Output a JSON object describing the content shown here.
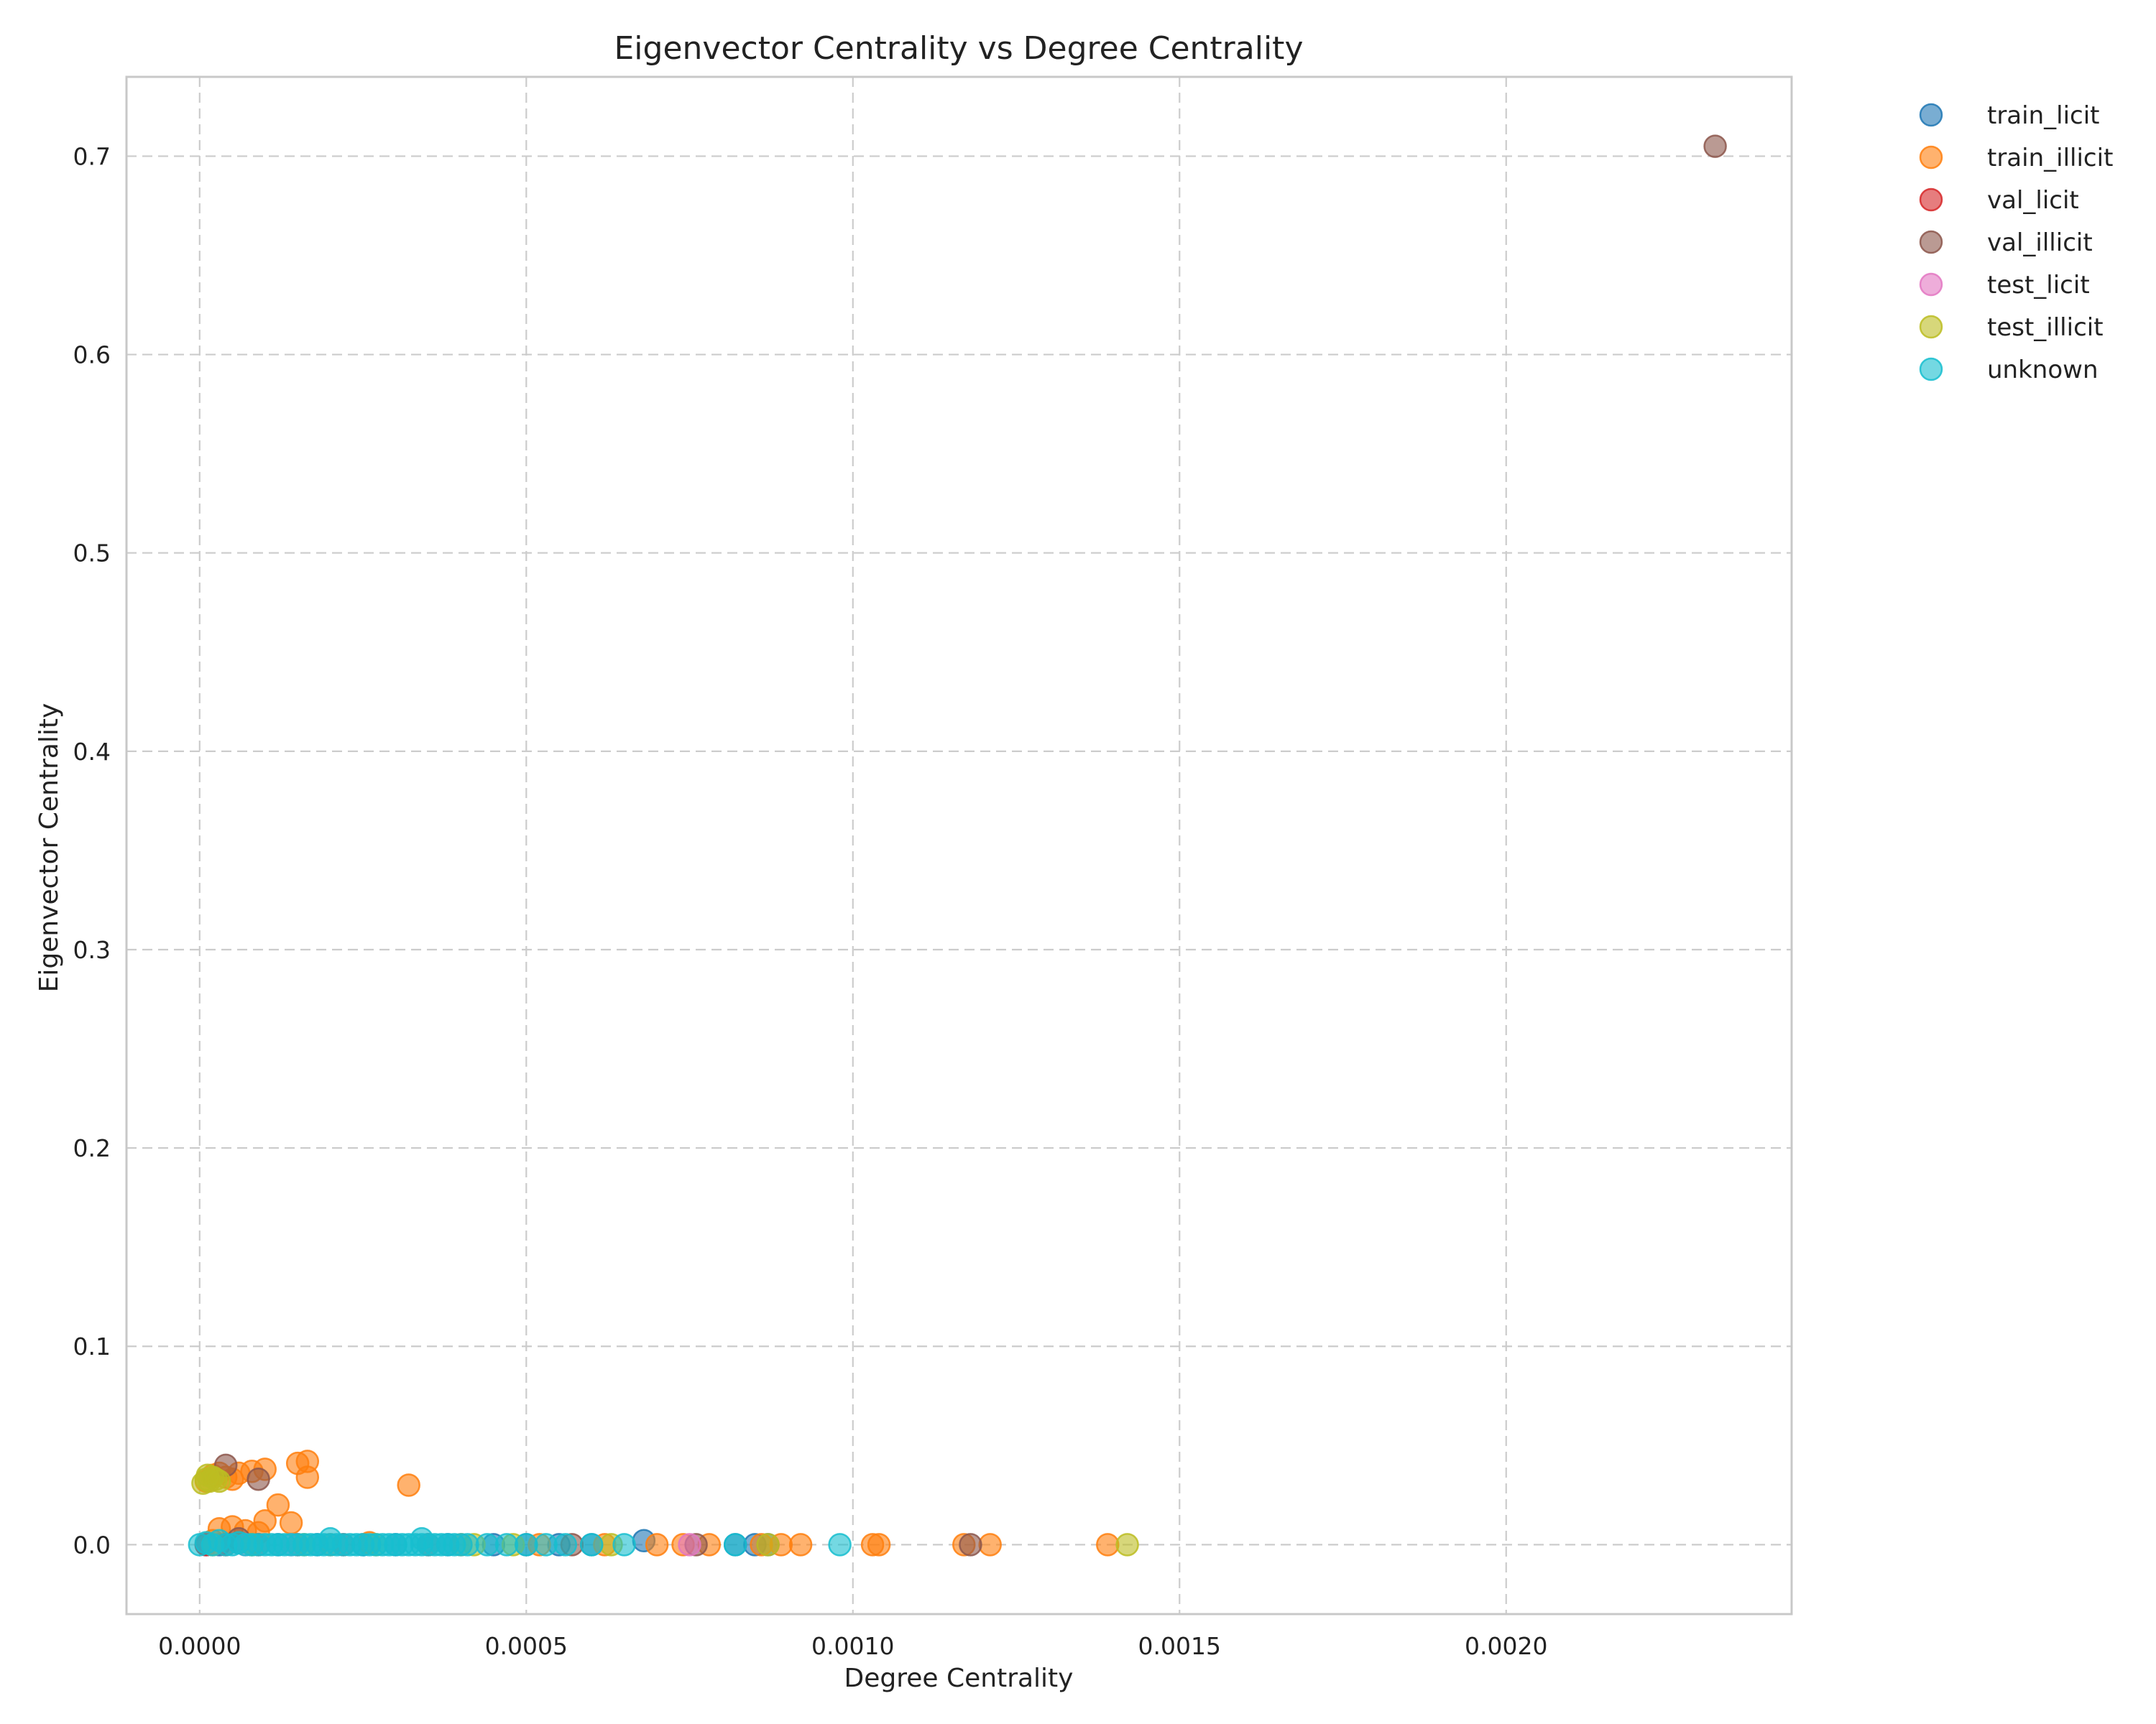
{
  "chart_data": {
    "type": "scatter",
    "title": "Eigenvector Centrality vs Degree Centrality",
    "xlabel": "Degree Centrality",
    "ylabel": "Eigenvector Centrality",
    "xlim": [
      -0.000112,
      0.002437
    ],
    "ylim": [
      -0.035,
      0.74
    ],
    "x_ticks": [
      0.0,
      0.0005,
      0.001,
      0.0015,
      0.002
    ],
    "x_tick_labels": [
      "0.0000",
      "0.0005",
      "0.0010",
      "0.0015",
      "0.0020"
    ],
    "y_ticks": [
      0.0,
      0.1,
      0.2,
      0.3,
      0.4,
      0.5,
      0.6,
      0.7
    ],
    "y_tick_labels": [
      "0.0",
      "0.1",
      "0.2",
      "0.3",
      "0.4",
      "0.5",
      "0.6",
      "0.7"
    ],
    "grid": true,
    "legend_position": "outside-top-right",
    "series": [
      {
        "name": "train_licit",
        "color": "#1f77b4",
        "points": [
          [
            1e-05,
            0
          ],
          [
            3e-05,
            0
          ],
          [
            6e-05,
            0.001
          ],
          [
            8e-05,
            0
          ],
          [
            0.00012,
            0
          ],
          [
            0.00018,
            0
          ],
          [
            0.00025,
            0
          ],
          [
            0.0003,
            0
          ],
          [
            0.00038,
            0
          ],
          [
            0.00045,
            0
          ],
          [
            0.0005,
            0
          ],
          [
            0.00055,
            0
          ],
          [
            0.0006,
            0
          ],
          [
            0.00068,
            0.002
          ],
          [
            0.00082,
            0
          ],
          [
            0.00085,
            0
          ],
          [
            0.00087,
            0
          ]
        ]
      },
      {
        "name": "train_illicit",
        "color": "#ff7f0e",
        "points": [
          [
            1e-05,
            0.032
          ],
          [
            2e-05,
            0.035
          ],
          [
            3e-05,
            0.036
          ],
          [
            4e-05,
            0.034
          ],
          [
            5e-05,
            0.033
          ],
          [
            6e-05,
            0.036
          ],
          [
            8e-05,
            0.037
          ],
          [
            0.0001,
            0.038
          ],
          [
            0.00015,
            0.041
          ],
          [
            0.000165,
            0.042
          ],
          [
            0.000165,
            0.034
          ],
          [
            0.00032,
            0.03
          ],
          [
            0.00012,
            0.02
          ],
          [
            0.0001,
            0.012
          ],
          [
            0.00014,
            0.011
          ],
          [
            3e-05,
            0.008
          ],
          [
            5e-05,
            0.009
          ],
          [
            7e-05,
            0.007
          ],
          [
            9e-05,
            0.006
          ],
          [
            2e-05,
            0.002
          ],
          [
            0.0002,
            0
          ],
          [
            0.00026,
            0.001
          ],
          [
            0.0004,
            0
          ],
          [
            0.00052,
            0
          ],
          [
            0.00062,
            0
          ],
          [
            0.0007,
            0
          ],
          [
            0.00074,
            0
          ],
          [
            0.00078,
            0
          ],
          [
            0.00086,
            0
          ],
          [
            0.00089,
            0
          ],
          [
            0.00092,
            0
          ],
          [
            0.00103,
            0
          ],
          [
            0.00104,
            0
          ],
          [
            0.00117,
            0
          ],
          [
            0.00121,
            0
          ],
          [
            0.00139,
            0
          ]
        ]
      },
      {
        "name": "val_licit",
        "color": "#d62728",
        "points": [
          [
            1e-05,
            0
          ],
          [
            4e-05,
            0
          ],
          [
            9e-05,
            0
          ],
          [
            0.00015,
            0
          ],
          [
            0.00022,
            0
          ],
          [
            0.00035,
            0
          ]
        ]
      },
      {
        "name": "val_illicit",
        "color": "#8c564b",
        "points": [
          [
            4e-05,
            0.04
          ],
          [
            9e-05,
            0.033
          ],
          [
            6e-05,
            0.003
          ],
          [
            0.00057,
            0
          ],
          [
            0.00076,
            0
          ],
          [
            0.00118,
            0
          ],
          [
            0.00232,
            0.705
          ]
        ]
      },
      {
        "name": "test_licit",
        "color": "#e377c2",
        "points": [
          [
            2e-05,
            0
          ],
          [
            7e-05,
            0
          ],
          [
            0.00014,
            0
          ],
          [
            0.00075,
            0
          ]
        ]
      },
      {
        "name": "test_illicit",
        "color": "#bcbd22",
        "points": [
          [
            5e-06,
            0.031
          ],
          [
            1e-05,
            0.033
          ],
          [
            1.5e-05,
            0.032
          ],
          [
            2e-05,
            0.034
          ],
          [
            2.5e-05,
            0.033
          ],
          [
            3e-05,
            0.032
          ],
          [
            1.2e-05,
            0.035
          ],
          [
            2e-05,
            0
          ],
          [
            8e-05,
            0
          ],
          [
            0.00016,
            0
          ],
          [
            0.00027,
            0
          ],
          [
            0.00042,
            0
          ],
          [
            0.00048,
            0
          ],
          [
            0.00063,
            0
          ],
          [
            0.00087,
            0
          ],
          [
            0.00142,
            0
          ]
        ]
      },
      {
        "name": "unknown",
        "color": "#17becf",
        "points": [
          [
            0,
            0
          ],
          [
            1e-05,
            0.001
          ],
          [
            2e-05,
            0
          ],
          [
            3e-05,
            0.002
          ],
          [
            4e-05,
            0
          ],
          [
            5e-05,
            0
          ],
          [
            6e-05,
            0.001
          ],
          [
            7e-05,
            0
          ],
          [
            8e-05,
            0
          ],
          [
            9e-05,
            0
          ],
          [
            0.0001,
            0
          ],
          [
            0.00011,
            0
          ],
          [
            0.00012,
            0
          ],
          [
            0.00013,
            0
          ],
          [
            0.00014,
            0
          ],
          [
            0.00015,
            0
          ],
          [
            0.00016,
            0
          ],
          [
            0.00017,
            0
          ],
          [
            0.00018,
            0
          ],
          [
            0.00019,
            0
          ],
          [
            0.0002,
            0
          ],
          [
            0.0002,
            0.003
          ],
          [
            0.00021,
            0
          ],
          [
            0.00022,
            0
          ],
          [
            0.00023,
            0
          ],
          [
            0.00024,
            0
          ],
          [
            0.00025,
            0
          ],
          [
            0.00026,
            0
          ],
          [
            0.00027,
            0
          ],
          [
            0.00028,
            0
          ],
          [
            0.00029,
            0
          ],
          [
            0.0003,
            0
          ],
          [
            0.00031,
            0
          ],
          [
            0.00032,
            0
          ],
          [
            0.00033,
            0
          ],
          [
            0.00034,
            0
          ],
          [
            0.00034,
            0.003
          ],
          [
            0.00035,
            0
          ],
          [
            0.00036,
            0
          ],
          [
            0.00037,
            0
          ],
          [
            0.00038,
            0
          ],
          [
            0.00039,
            0
          ],
          [
            0.0004,
            0
          ],
          [
            0.00041,
            0
          ],
          [
            0.00044,
            0
          ],
          [
            0.00047,
            0
          ],
          [
            0.0005,
            0
          ],
          [
            0.00053,
            0
          ],
          [
            0.00056,
            0
          ],
          [
            0.0006,
            0
          ],
          [
            0.00065,
            0
          ],
          [
            0.00082,
            0
          ],
          [
            0.00098,
            0
          ]
        ]
      }
    ]
  }
}
